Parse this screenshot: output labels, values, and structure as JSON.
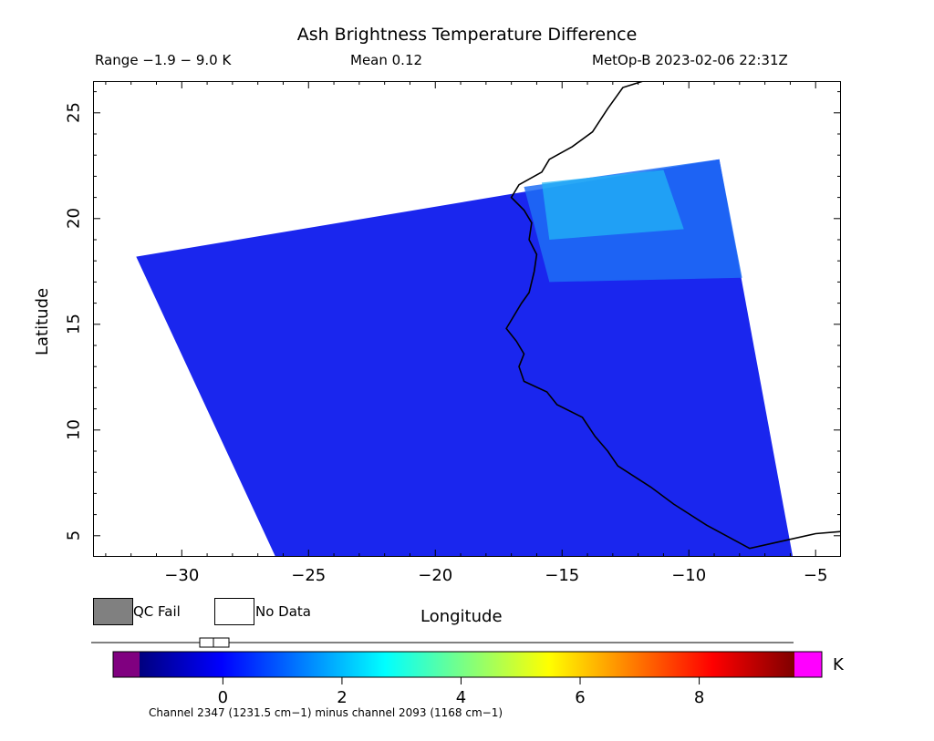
{
  "header": {
    "title": "Ash Brightness Temperature Difference",
    "range": "Range −1.9 − 9.0 K",
    "mean": "Mean 0.12",
    "satellite_time": "MetOp-B 2023-02-06 22:31Z"
  },
  "axes": {
    "x_label": "Longitude",
    "y_label": "Latitude",
    "x_range": [
      -33.5,
      -4
    ],
    "y_range": [
      4,
      26.5
    ],
    "x_ticks": [
      {
        "v": -30,
        "label": "−30"
      },
      {
        "v": -25,
        "label": "−25"
      },
      {
        "v": -20,
        "label": "−20"
      },
      {
        "v": -15,
        "label": "−15"
      },
      {
        "v": -10,
        "label": "−10"
      },
      {
        "v": -5,
        "label": "−5"
      }
    ],
    "y_ticks": [
      {
        "v": 5,
        "label": "5"
      },
      {
        "v": 10,
        "label": "10"
      },
      {
        "v": 15,
        "label": "15"
      },
      {
        "v": 20,
        "label": "20"
      },
      {
        "v": 25,
        "label": "25"
      }
    ]
  },
  "legend": {
    "qc_fail_label": "QC Fail",
    "qc_fail_color": "#808080",
    "no_data_label": "No Data",
    "no_data_color": "#ffffff"
  },
  "colorbar": {
    "unit": "K",
    "range": [
      -1.4,
      9.6
    ],
    "ticks": [
      {
        "v": 0,
        "label": "0"
      },
      {
        "v": 2,
        "label": "2"
      },
      {
        "v": 4,
        "label": "4"
      },
      {
        "v": 6,
        "label": "6"
      },
      {
        "v": 8,
        "label": "8"
      }
    ],
    "under_color": "#800080",
    "over_color": "#ff00ff",
    "stops": [
      "#00007f",
      "#0000ff",
      "#007fff",
      "#00ffff",
      "#7fff7f",
      "#ffff00",
      "#ff7f00",
      "#ff0000",
      "#7f0000"
    ],
    "caption": "Channel 2347 (1231.5 cm−1) minus channel 2093 (1168 cm−1)"
  },
  "swath": {
    "corners_lonlat": [
      [
        -31.8,
        18.2
      ],
      [
        -8.8,
        22.8
      ],
      [
        -5.9,
        4
      ],
      [
        -26.3,
        4
      ]
    ]
  },
  "coastline_lonlat": [
    [
      -11.8,
      26.5
    ],
    [
      -12.6,
      26.2
    ],
    [
      -13.2,
      25.2
    ],
    [
      -13.8,
      24.1
    ],
    [
      -14.6,
      23.4
    ],
    [
      -15.5,
      22.8
    ],
    [
      -15.8,
      22.2
    ],
    [
      -16.7,
      21.6
    ],
    [
      -17.0,
      21.0
    ],
    [
      -16.5,
      20.4
    ],
    [
      -16.2,
      19.8
    ],
    [
      -16.3,
      19.0
    ],
    [
      -16.0,
      18.3
    ],
    [
      -16.1,
      17.5
    ],
    [
      -16.3,
      16.5
    ],
    [
      -16.6,
      16.0
    ],
    [
      -17.2,
      14.8
    ],
    [
      -16.8,
      14.2
    ],
    [
      -16.5,
      13.6
    ],
    [
      -16.7,
      13.0
    ],
    [
      -16.5,
      12.3
    ],
    [
      -15.6,
      11.8
    ],
    [
      -15.2,
      11.2
    ],
    [
      -14.2,
      10.6
    ],
    [
      -13.7,
      9.7
    ],
    [
      -13.2,
      9.0
    ],
    [
      -12.8,
      8.3
    ],
    [
      -11.5,
      7.3
    ],
    [
      -10.6,
      6.5
    ],
    [
      -9.3,
      5.5
    ],
    [
      -7.6,
      4.4
    ],
    [
      -6.5,
      4.7
    ],
    [
      -5.0,
      5.1
    ],
    [
      -4.0,
      5.2
    ]
  ]
}
